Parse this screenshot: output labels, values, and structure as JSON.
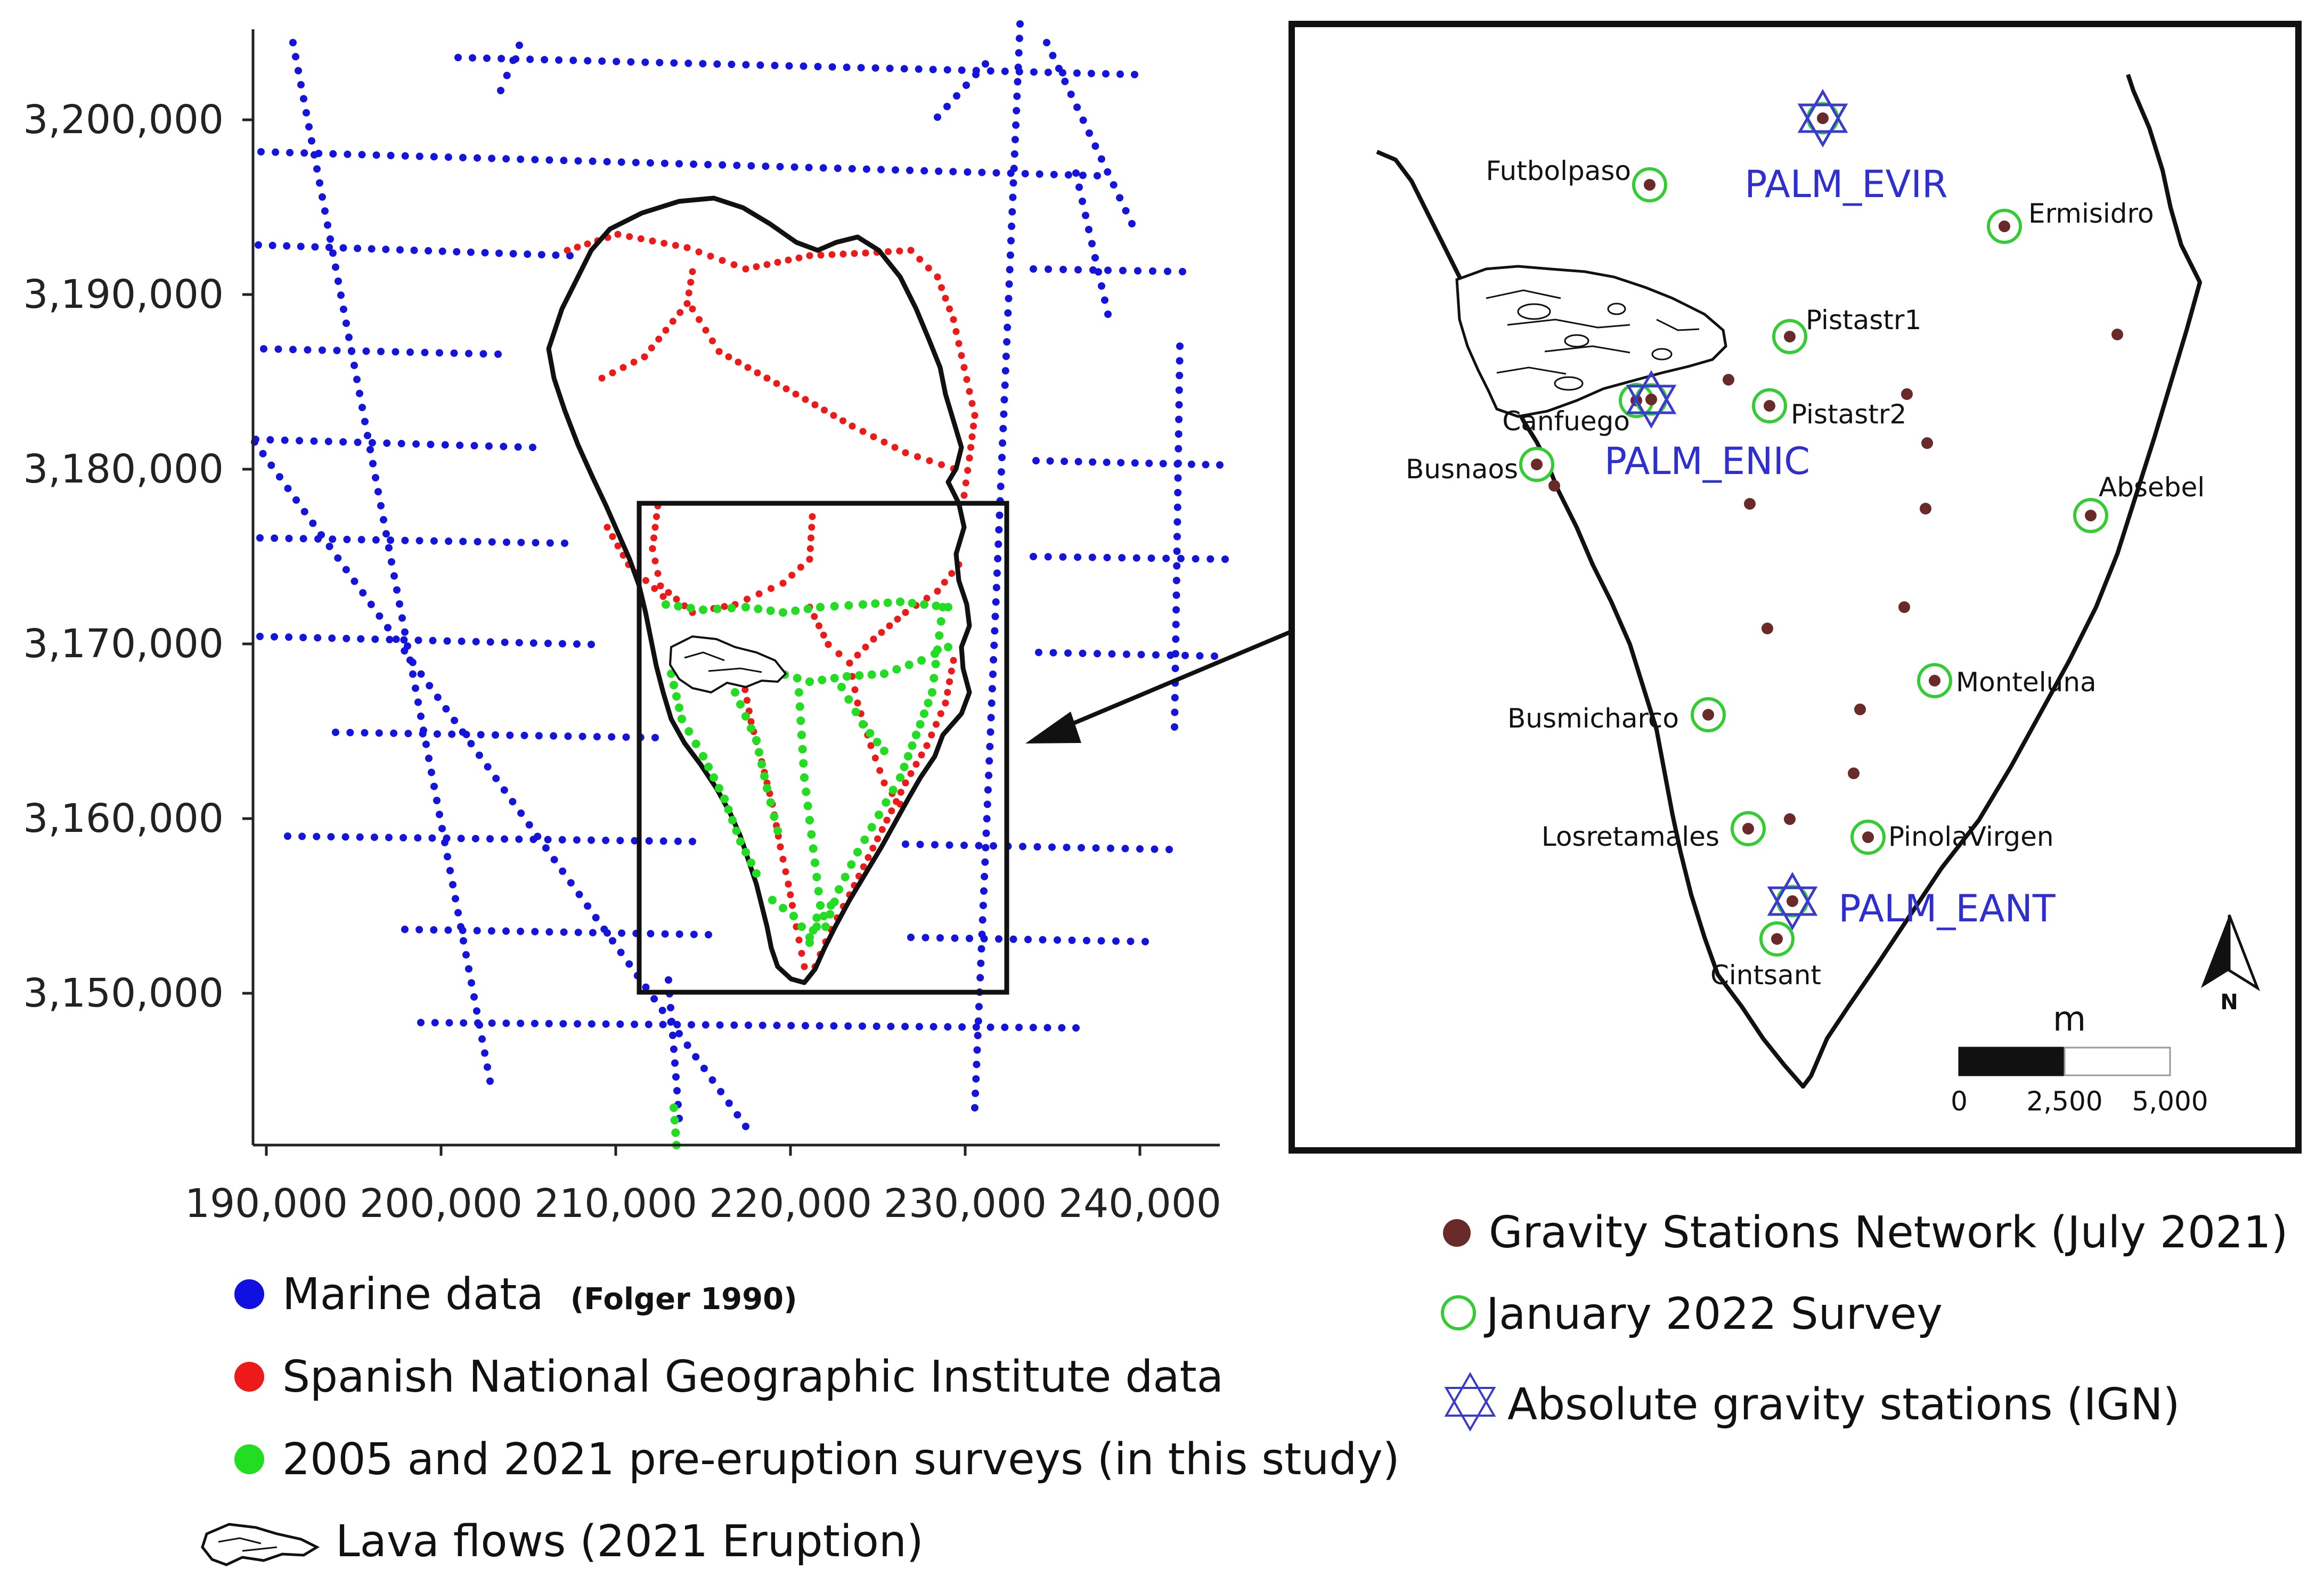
{
  "overview_map": {
    "y_ticks": [
      "3,200,000",
      "3,190,000",
      "3,180,000",
      "3,170,000",
      "3,160,000",
      "3,150,000"
    ],
    "x_ticks": [
      "190,000",
      "200,000",
      "210,000",
      "220,000",
      "230,000",
      "240,000"
    ]
  },
  "detail_map": {
    "survey_sites": [
      "Futbolpaso",
      "Ermisidro",
      "Pistastr1",
      "Pistastr2",
      "Canfuego",
      "Busnaos",
      "Absebel",
      "Monteluna",
      "Busmicharco",
      "Losretamales",
      "PinolaVirgen",
      "Cintsant"
    ],
    "absolute_stations": [
      "PALM_EVIR",
      "PALM_ENIC",
      "PALM_EANT"
    ],
    "scale_bar": {
      "unit": "m",
      "labels": [
        "0",
        "2,500",
        "5,000"
      ]
    },
    "north_label": "N"
  },
  "legend_left": {
    "marine": {
      "label": "Marine data",
      "citation": "(Folger 1990)",
      "color": "#1010e0"
    },
    "ign": {
      "label": "Spanish National Geographic Institute data",
      "color": "#ee1a1a"
    },
    "surveys": {
      "label": "2005 and 2021 pre-eruption surveys (in this study)",
      "color": "#22dd22"
    },
    "lava": {
      "label": "Lava flows (2021 Eruption)"
    }
  },
  "legend_right": {
    "gravity_network": {
      "label": "Gravity Stations Network (July 2021)",
      "color": "#6b2a2a"
    },
    "january_survey": {
      "label": "January 2022 Survey",
      "color": "#33cc33"
    },
    "absolute_gravity": {
      "label": "Absolute gravity stations (IGN)",
      "color": "#3a3acc"
    }
  }
}
